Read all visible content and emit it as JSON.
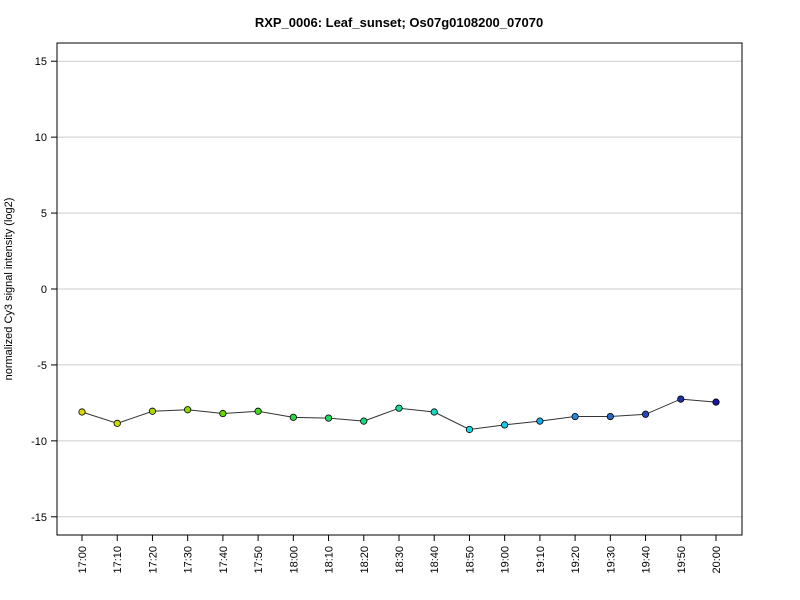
{
  "chart_data": {
    "type": "line",
    "title": "RXP_0006: Leaf_sunset; Os07g0108200_07070",
    "xlabel": "",
    "ylabel": "normalized Cy3 signal intensity (log2)",
    "ylim": [
      -16.2,
      16.2
    ],
    "yticks": [
      -15,
      -10,
      -5,
      0,
      5,
      10,
      15
    ],
    "ytick_labels": [
      "-15",
      "-10",
      "-5",
      "0",
      "5",
      "10",
      "15"
    ],
    "grid": "horizontal",
    "categories": [
      "17:00",
      "17:10",
      "17:20",
      "17:30",
      "17:40",
      "17:50",
      "18:00",
      "18:10",
      "18:20",
      "18:30",
      "18:40",
      "18:50",
      "19:00",
      "19:10",
      "19:20",
      "19:30",
      "19:40",
      "19:50",
      "20:00"
    ],
    "values": [
      -8.1,
      -8.85,
      -8.05,
      -7.95,
      -8.2,
      -8.05,
      -8.45,
      -8.5,
      -8.7,
      -7.85,
      -8.1,
      -9.25,
      -8.95,
      -8.7,
      -8.4,
      -8.4,
      -8.25,
      -7.25,
      -7.45
    ],
    "colors": [
      "#d8d800",
      "#c8d800",
      "#a8d800",
      "#88d800",
      "#66d800",
      "#44d820",
      "#2cd840",
      "#22d860",
      "#18d880",
      "#18d8a0",
      "#18d8c0",
      "#18d8d8",
      "#18c8e8",
      "#18a8e8",
      "#2888d8",
      "#2868c8",
      "#2848b8",
      "#2030a8",
      "#1818a0"
    ]
  }
}
